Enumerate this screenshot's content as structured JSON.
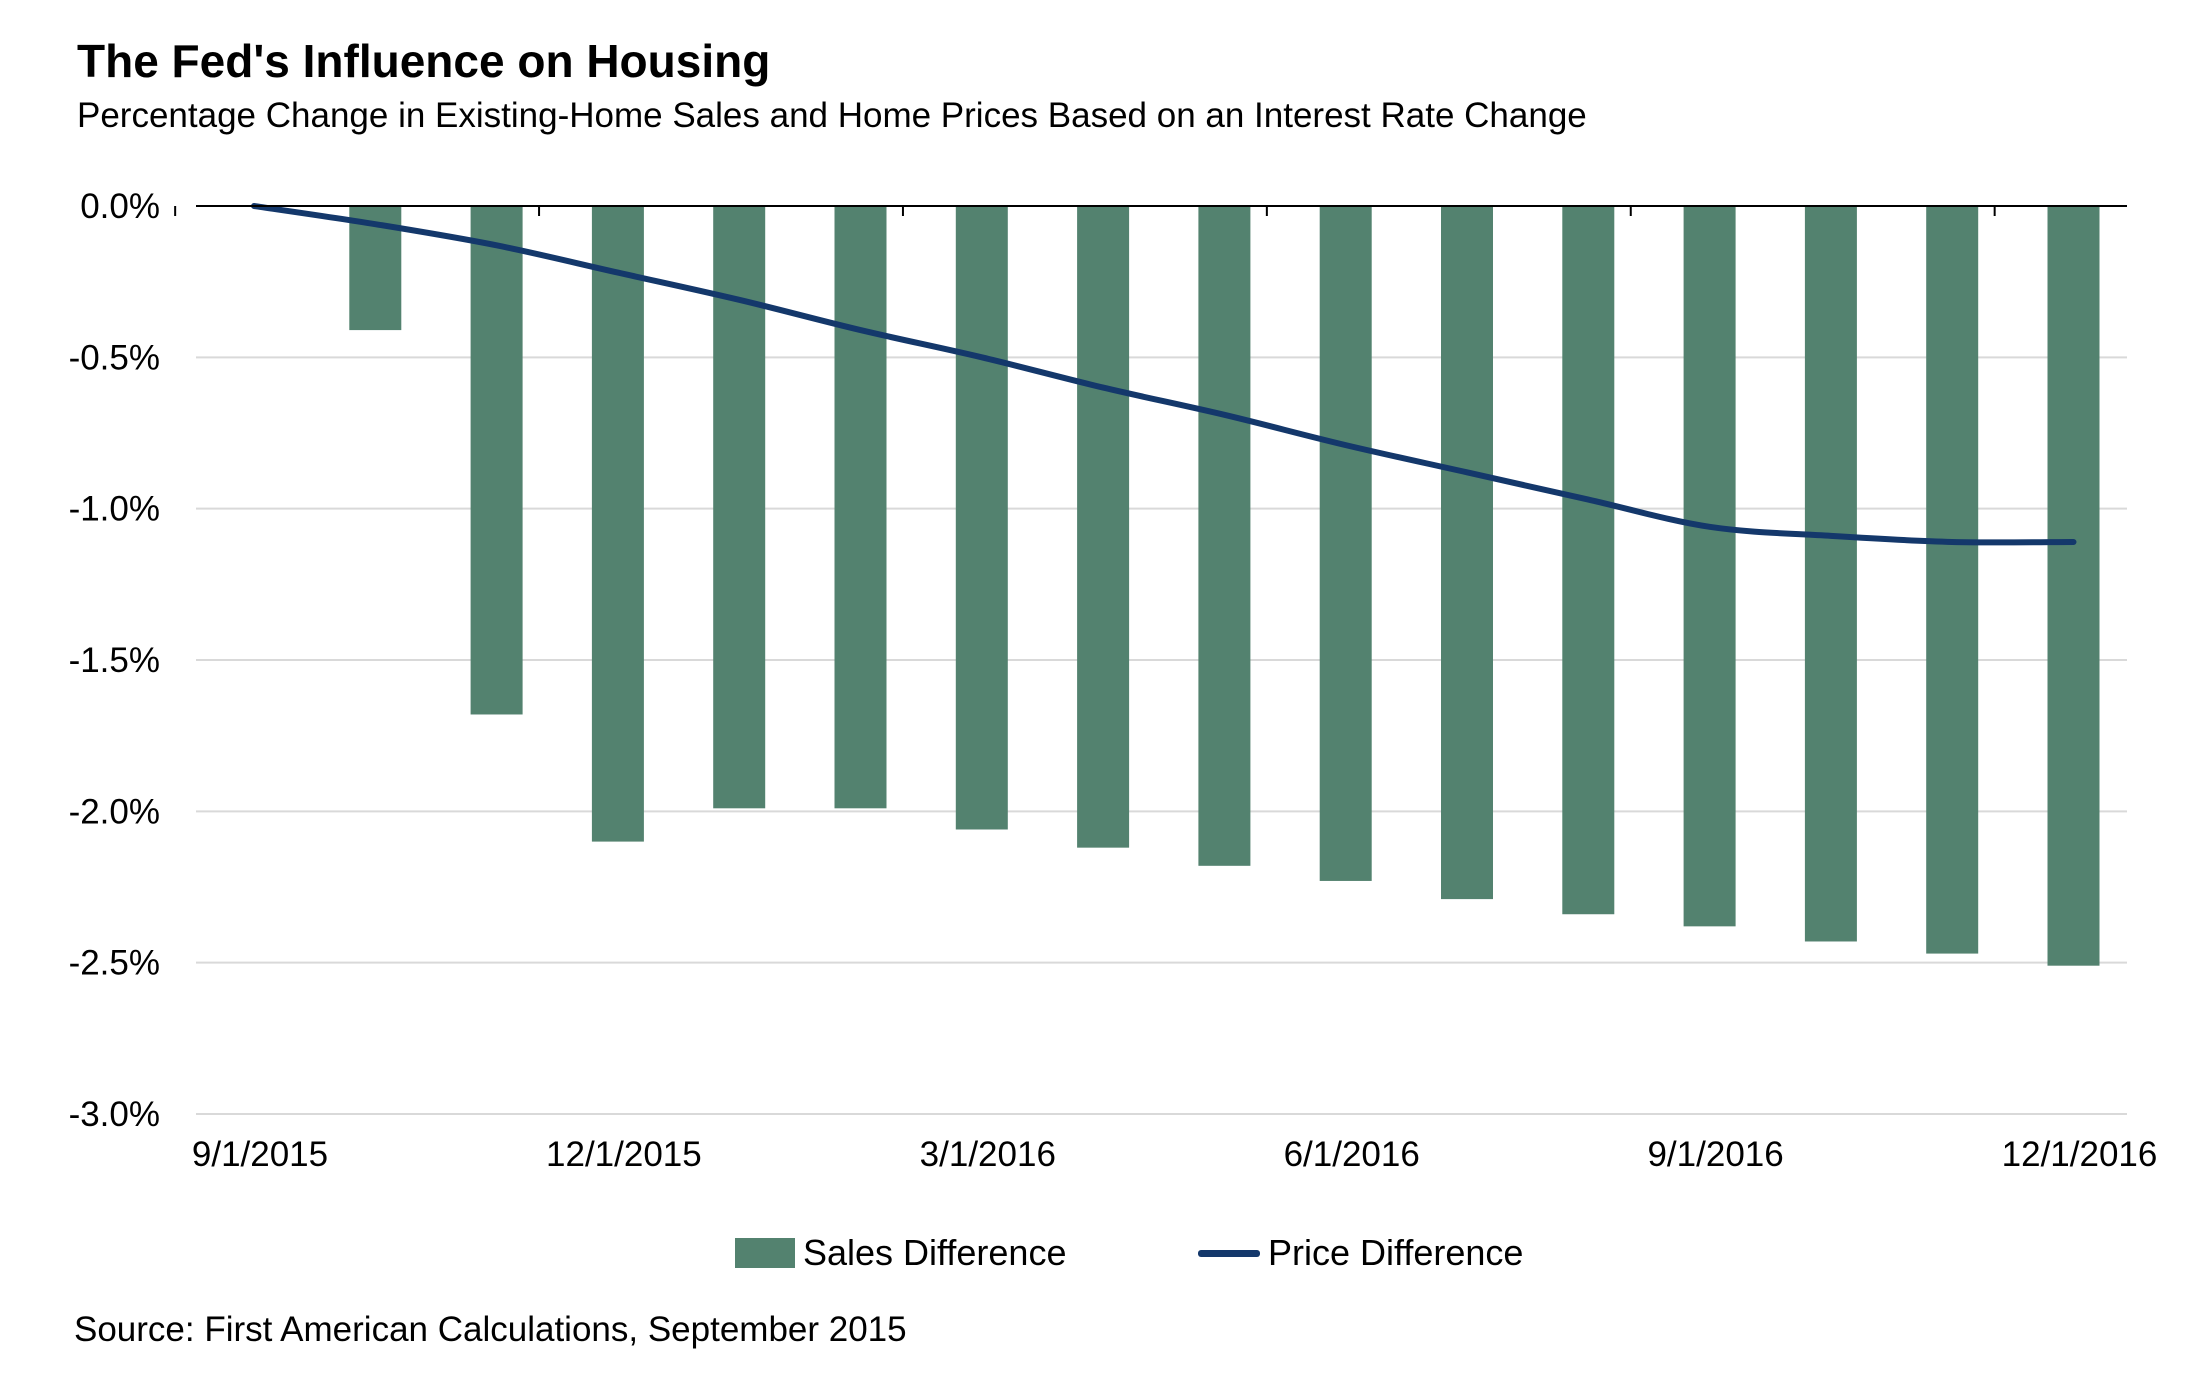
{
  "header": {
    "title": "The Fed's Influence on Housing",
    "subtitle": "Percentage Change in Existing-Home Sales and Home Prices Based on an Interest Rate Change"
  },
  "footer": {
    "source": "Source: First American Calculations, September 2015"
  },
  "colors": {
    "sales_bar": "#53826f",
    "price_line": "#14386b",
    "gridline": "#d9d9d9",
    "axis": "#000000"
  },
  "chart_data": {
    "type": "bar",
    "title": "The Fed's Influence on Housing",
    "subtitle": "Percentage Change in Existing-Home Sales and Home Prices Based on an Interest Rate Change",
    "xlabel": "",
    "ylabel": "",
    "ylim": [
      -3.0,
      0.0
    ],
    "grid": true,
    "legend_position": "bottom",
    "x_tick_labels": [
      "9/1/2015",
      "12/1/2015",
      "3/1/2016",
      "6/1/2016",
      "9/1/2016",
      "12/1/2016"
    ],
    "y_tick_labels": [
      "0.0%",
      "-0.5%",
      "-1.0%",
      "-1.5%",
      "-2.0%",
      "-2.5%",
      "-3.0%"
    ],
    "y_ticks": [
      0.0,
      -0.5,
      -1.0,
      -1.5,
      -2.0,
      -2.5,
      -3.0
    ],
    "categories": [
      "9/1/2015",
      "10/1/2015",
      "11/1/2015",
      "12/1/2015",
      "1/1/2016",
      "2/1/2016",
      "3/1/2016",
      "4/1/2016",
      "5/1/2016",
      "6/1/2016",
      "7/1/2016",
      "8/1/2016",
      "9/1/2016",
      "10/1/2016",
      "11/1/2016",
      "12/1/2016"
    ],
    "series": [
      {
        "name": "Sales Difference",
        "kind": "bar",
        "values": [
          0.0,
          -0.41,
          -1.68,
          -2.1,
          -1.99,
          -1.99,
          -2.06,
          -2.12,
          -2.18,
          -2.23,
          -2.29,
          -2.34,
          -2.38,
          -2.43,
          -2.47,
          -2.51
        ]
      },
      {
        "name": "Price Difference",
        "kind": "line",
        "values": [
          0.0,
          -0.06,
          -0.13,
          -0.22,
          -0.31,
          -0.41,
          -0.5,
          -0.6,
          -0.69,
          -0.79,
          -0.88,
          -0.97,
          -1.06,
          -1.09,
          -1.11,
          -1.11
        ]
      }
    ]
  }
}
